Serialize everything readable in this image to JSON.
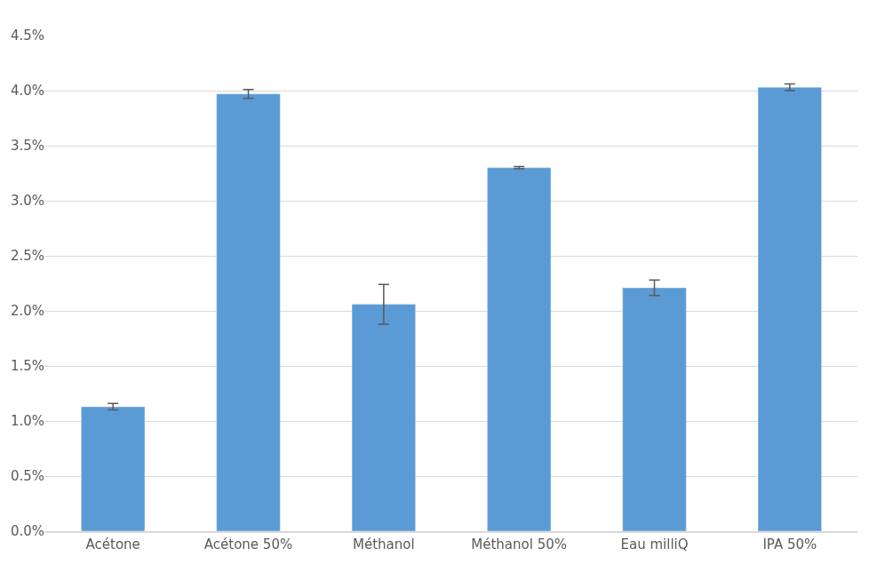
{
  "chart_data": {
    "type": "bar",
    "categories": [
      "Acétone",
      "Acétone 50%",
      "Méthanol",
      "Méthanol 50%",
      "Eau milliQ",
      "IPA 50%"
    ],
    "values": [
      1.13,
      3.97,
      2.06,
      3.3,
      2.21,
      4.03
    ],
    "errors": [
      0.03,
      0.04,
      0.18,
      0.01,
      0.07,
      0.03
    ],
    "color": "#5b9bd5",
    "ylim": [
      0,
      4.5
    ],
    "yticks": [
      {
        "value": 0,
        "label": "0.0%"
      },
      {
        "value": 0.5,
        "label": "0.5%"
      },
      {
        "value": 1,
        "label": "1.0%"
      },
      {
        "value": 1.5,
        "label": "1.5%"
      },
      {
        "value": 2,
        "label": "2.0%"
      },
      {
        "value": 2.5,
        "label": "2.5%"
      },
      {
        "value": 3,
        "label": "3.0%"
      },
      {
        "value": 3.5,
        "label": "3.5%"
      },
      {
        "value": 4,
        "label": "4.0%"
      },
      {
        "value": 4.5,
        "label": "4.5%"
      }
    ],
    "grid": "y",
    "legend": false
  }
}
